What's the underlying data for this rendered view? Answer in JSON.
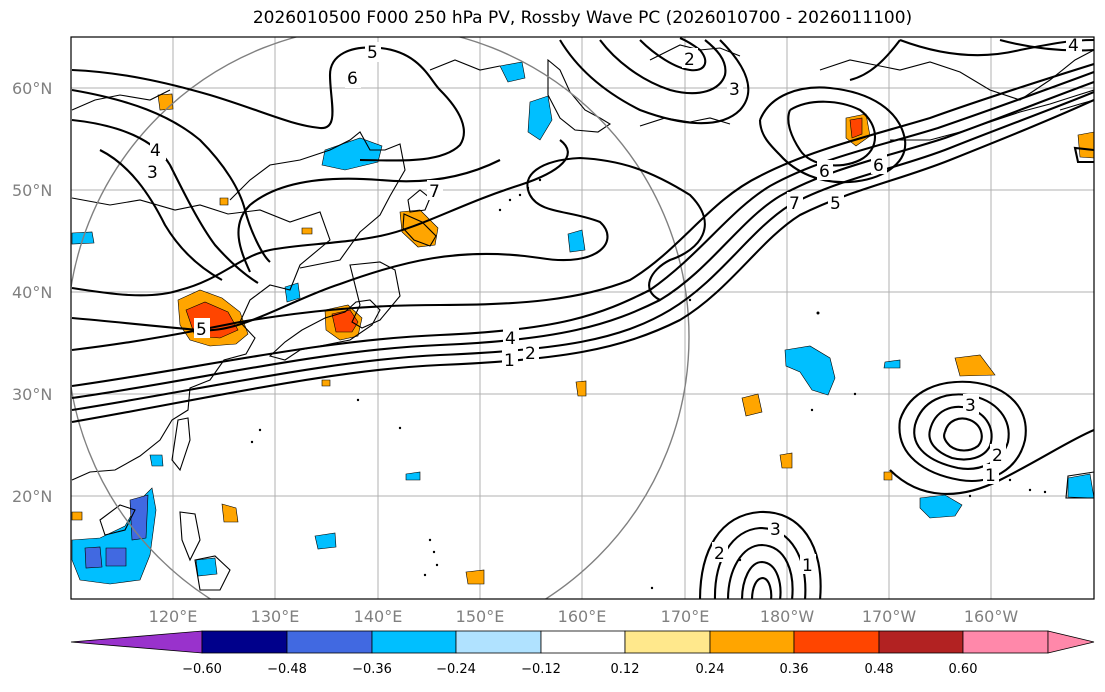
{
  "title": "2026010500 F000 250 hPa PV, Rossby Wave PC (2026010700 - 2026011100)",
  "lat_labels": [
    "60°N",
    "50°N",
    "40°N",
    "30°N",
    "20°N"
  ],
  "lon_labels": [
    "120°E",
    "130°E",
    "140°E",
    "150°E",
    "160°E",
    "170°E",
    "180°W",
    "170°W",
    "160°W"
  ],
  "colorbar": {
    "ticks": [
      "−0.60",
      "−0.48",
      "−0.36",
      "−0.24",
      "−0.12",
      "0.12",
      "0.24",
      "0.36",
      "0.48",
      "0.60"
    ],
    "colors": [
      "#9932cc",
      "#00008b",
      "#4169e1",
      "#00bfff",
      "#b0e2ff",
      "#ffffff",
      "#ffe88c",
      "#ffa500",
      "#ff4500",
      "#b22222",
      "#ff88aa"
    ]
  },
  "contour_labels": [
    "1",
    "2",
    "3",
    "4",
    "5",
    "6",
    "7",
    "5",
    "2",
    "3",
    "6",
    "7",
    "5",
    "6",
    "4",
    "3",
    "4",
    "3",
    "2",
    "1",
    "3",
    "2",
    "1"
  ]
}
